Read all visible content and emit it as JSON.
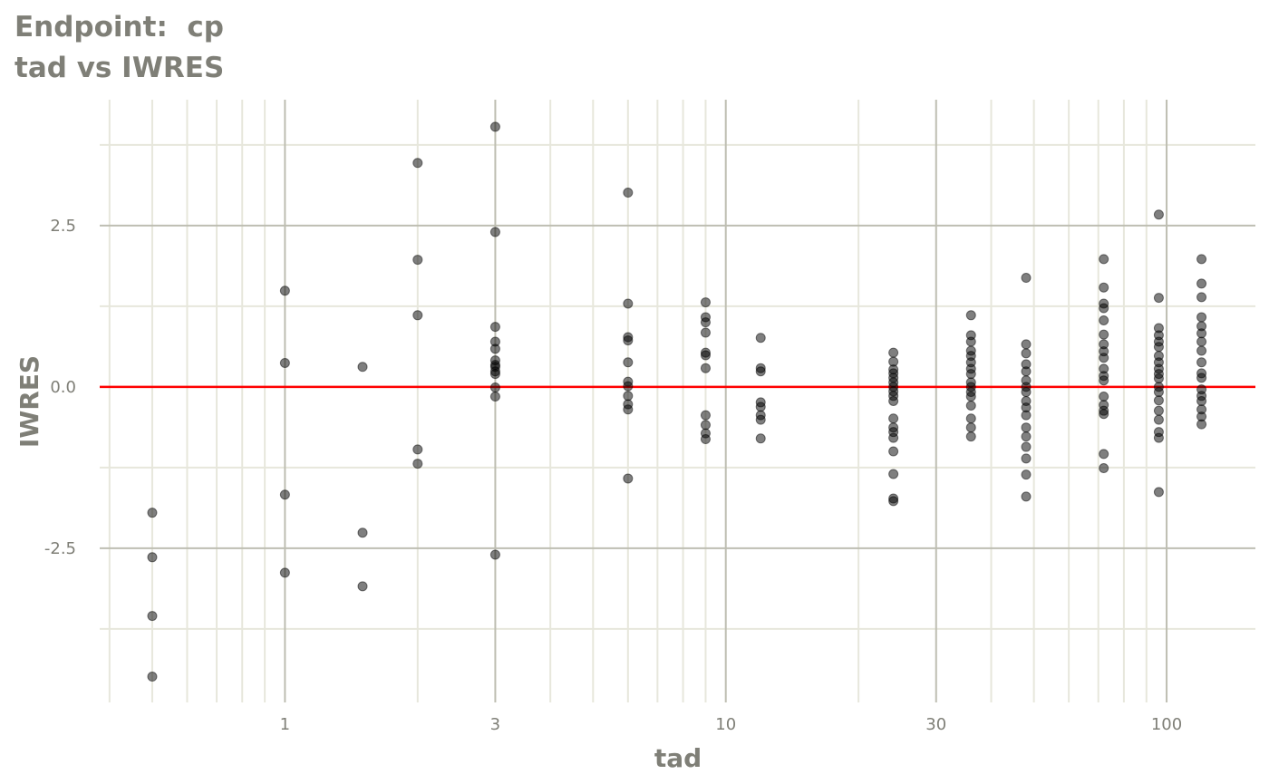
{
  "chart_data": {
    "type": "scatter",
    "title": "Endpoint:  cp",
    "subtitle": "tad vs IWRES",
    "xlabel": "tad",
    "ylabel": "IWRES",
    "x_scale": "log10",
    "xlim": [
      0.38,
      159
    ],
    "ylim": [
      -4.89,
      4.45
    ],
    "x_ticks": [
      1,
      3,
      10,
      30,
      100
    ],
    "x_tick_labels": [
      "1",
      "3",
      "10",
      "30",
      "100"
    ],
    "y_ticks": [
      -2.5,
      0,
      2.5
    ],
    "y_tick_labels": [
      "-2.5",
      "0.0",
      "2.5"
    ],
    "grid": true,
    "reference_line": {
      "y": 0,
      "color": "#ff0000"
    },
    "point_color": "#000000",
    "point_alpha": 0.5,
    "groups": [
      {
        "x": 0.5,
        "y": [
          -1.95,
          -2.64,
          -3.55,
          -4.49
        ]
      },
      {
        "x": 1,
        "y": [
          1.49,
          0.37,
          -1.67,
          -2.88
        ]
      },
      {
        "x": 1.5,
        "y": [
          0.31,
          -2.26,
          -3.09
        ]
      },
      {
        "x": 2,
        "y": [
          3.47,
          1.97,
          1.11,
          -0.97,
          -1.19
        ]
      },
      {
        "x": 3,
        "y": [
          4.03,
          2.4,
          0.93,
          0.7,
          0.59,
          0.41,
          0.34,
          0.31,
          0.24,
          0.2,
          -0.01,
          -0.15,
          -2.6
        ]
      },
      {
        "x": 6,
        "y": [
          3.01,
          1.29,
          0.77,
          0.72,
          0.38,
          0.08,
          0.01,
          -0.14,
          -0.27,
          -0.35,
          -1.42
        ]
      },
      {
        "x": 9,
        "y": [
          1.31,
          1.08,
          1.0,
          0.84,
          0.53,
          0.49,
          0.29,
          -0.44,
          -0.59,
          -0.72,
          -0.81
        ]
      },
      {
        "x": 12,
        "y": [
          0.76,
          0.29,
          0.24,
          -0.24,
          -0.31,
          -0.44,
          -0.51,
          -0.8
        ]
      },
      {
        "x": 24,
        "y": [
          0.53,
          0.39,
          0.27,
          0.21,
          0.14,
          0.07,
          0.0,
          -0.07,
          -0.14,
          -0.22,
          -0.49,
          -0.63,
          -0.7,
          -0.79,
          -1.0,
          -1.35,
          -1.73,
          -1.77
        ]
      },
      {
        "x": 36,
        "y": [
          1.11,
          0.8,
          0.7,
          0.56,
          0.48,
          0.38,
          0.28,
          0.2,
          0.07,
          0.0,
          -0.08,
          -0.15,
          -0.29,
          -0.49,
          -0.63,
          -0.77
        ]
      },
      {
        "x": 48,
        "y": [
          1.69,
          0.66,
          0.52,
          0.35,
          0.24,
          0.1,
          0.0,
          -0.08,
          -0.22,
          -0.32,
          -0.44,
          -0.63,
          -0.77,
          -0.93,
          -1.11,
          -1.36,
          -1.7
        ]
      },
      {
        "x": 72,
        "y": [
          1.98,
          1.54,
          1.29,
          1.22,
          1.03,
          0.81,
          0.66,
          0.55,
          0.45,
          0.28,
          0.17,
          0.1,
          -0.15,
          -0.28,
          -0.37,
          -0.42,
          -1.04,
          -1.26
        ]
      },
      {
        "x": 96,
        "y": [
          2.67,
          1.38,
          0.91,
          0.8,
          0.7,
          0.62,
          0.48,
          0.38,
          0.28,
          0.2,
          0.13,
          0.0,
          -0.08,
          -0.21,
          -0.37,
          -0.51,
          -0.7,
          -0.79,
          -1.63
        ]
      },
      {
        "x": 120,
        "y": [
          1.98,
          1.6,
          1.39,
          1.08,
          0.94,
          0.83,
          0.7,
          0.56,
          0.38,
          0.21,
          0.14,
          -0.04,
          -0.14,
          -0.22,
          -0.35,
          -0.46,
          -0.58
        ]
      }
    ]
  }
}
